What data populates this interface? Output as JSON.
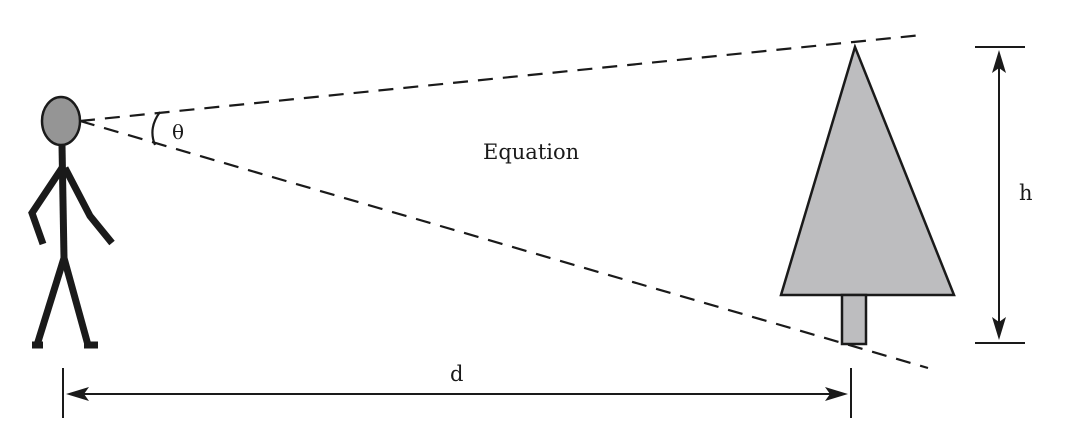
{
  "labels": {
    "angle": "θ",
    "equation": "Equation",
    "height": "h",
    "distance": "d"
  },
  "colors": {
    "stroke": "#1a1a1a",
    "head_fill": "#959595",
    "tree_fill": "#bdbdbf"
  },
  "icons": {
    "observer": "stick-figure",
    "tree": "tree"
  }
}
